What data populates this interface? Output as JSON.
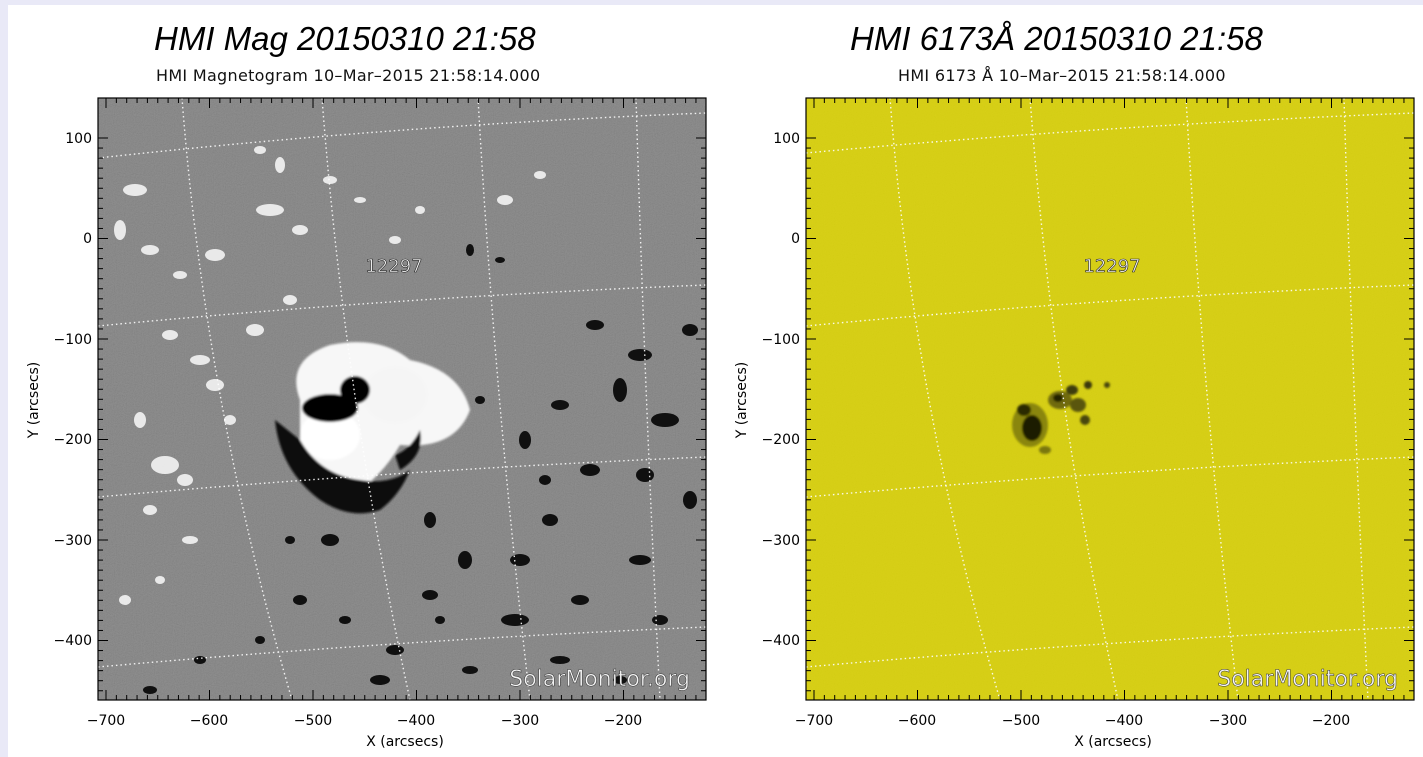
{
  "panels": [
    {
      "id": "magnetogram",
      "title": "HMI Mag 20150310 21:58",
      "subtitle": "HMI Magnetogram 10–Mar–2015 21:58:14.000",
      "background_color": "#808080",
      "region_label": "12297",
      "watermark": "SolarMonitor.org",
      "xlabel": "X (arcsecs)",
      "ylabel": "Y (arcsecs)",
      "x_ticks": [
        "−700",
        "−600",
        "−500",
        "−400",
        "−300",
        "−200"
      ],
      "y_ticks": [
        "100",
        "0",
        "−100",
        "−200",
        "−300",
        "−400"
      ]
    },
    {
      "id": "continuum",
      "title": "HMI 6173Å 20150310 21:58",
      "subtitle": "HMI 6173 Å 10–Mar–2015 21:58:14.000",
      "background_color": "#d8d00c",
      "region_label": "12297",
      "watermark": "SolarMonitor.org",
      "xlabel": "X (arcsecs)",
      "ylabel": "Y (arcsecs)",
      "x_ticks": [
        "−700",
        "−600",
        "−500",
        "−400",
        "−300",
        "−200"
      ],
      "y_ticks": [
        "100",
        "0",
        "−100",
        "−200",
        "−300",
        "−400"
      ]
    }
  ]
}
